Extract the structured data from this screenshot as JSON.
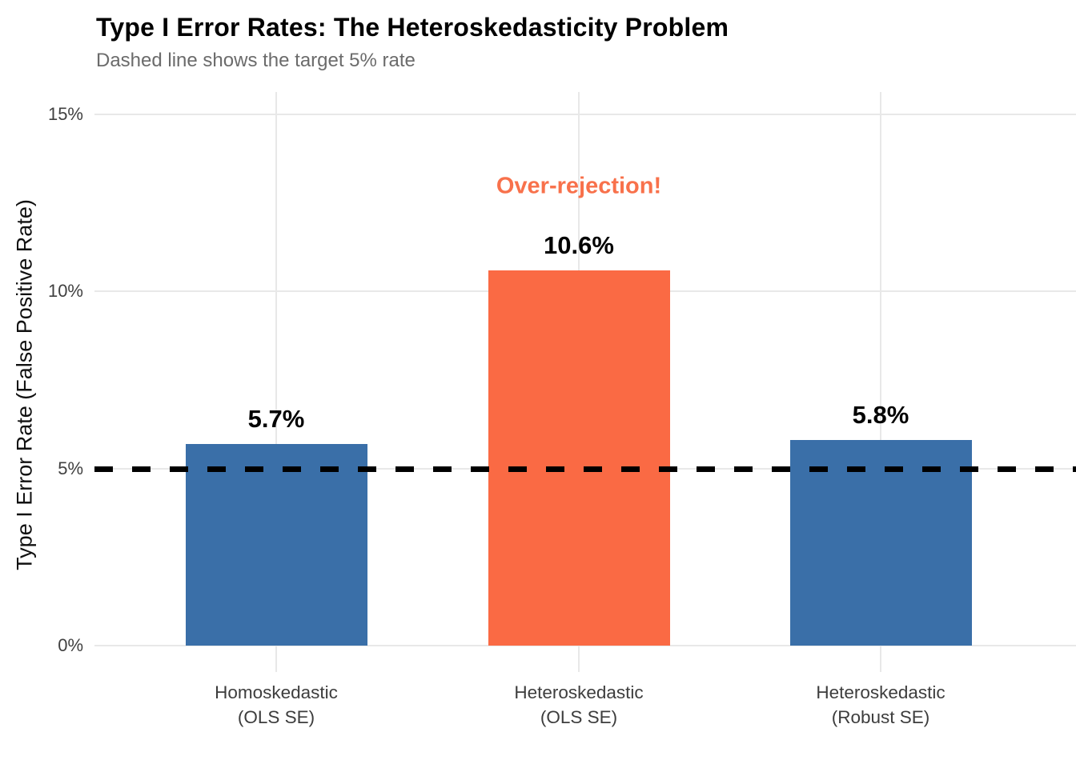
{
  "chart_data": {
    "type": "bar",
    "title": "Type I Error Rates: The Heteroskedasticity Problem",
    "subtitle": "Dashed line shows the target 5% rate",
    "ylabel": "Type I Error Rate (False Positive Rate)",
    "xlabel": "",
    "categories": [
      {
        "line1": "Homoskedastic",
        "line2": "(OLS SE)"
      },
      {
        "line1": "Heteroskedastic",
        "line2": "(OLS SE)"
      },
      {
        "line1": "Heteroskedastic",
        "line2": "(Robust SE)"
      }
    ],
    "values": [
      5.7,
      10.6,
      5.8
    ],
    "bar_labels": [
      "5.7%",
      "10.6%",
      "5.8%"
    ],
    "bar_colors": [
      "#3A6FA8",
      "#FA6A44",
      "#3A6FA8"
    ],
    "ylim": [
      0,
      15
    ],
    "yticks": [
      0,
      5,
      10,
      15
    ],
    "ytick_labels": [
      "0%",
      "5%",
      "10%",
      "15%"
    ],
    "grid": true,
    "legend": "none",
    "reference_line": {
      "y": 5,
      "style": "dashed",
      "color": "#000000",
      "meaning": "target 5% rate"
    },
    "annotation": {
      "text": "Over-rejection!",
      "color": "#F8714B",
      "category_index": 1
    }
  },
  "colors": {
    "bar_blue": "#3A6FA8",
    "bar_orange": "#FA6A44",
    "annotation_orange": "#F8714B",
    "gridline": "#E8E8E8",
    "tick_text": "#404040",
    "subtitle_text": "#6B6B6B",
    "title_text": "#000000",
    "reference_line": "#000000"
  }
}
